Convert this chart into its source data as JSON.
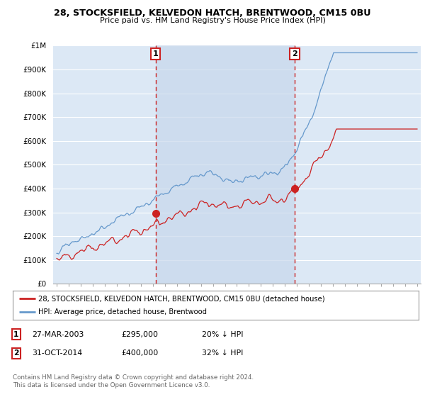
{
  "title1": "28, STOCKSFIELD, KELVEDON HATCH, BRENTWOOD, CM15 0BU",
  "title2": "Price paid vs. HM Land Registry's House Price Index (HPI)",
  "background_color": "#ffffff",
  "plot_bg_color": "#dce8f5",
  "grid_color": "#ffffff",
  "red_color": "#cc2222",
  "blue_color": "#6699cc",
  "shade_color": "#ccdcee",
  "marker1_date_x": 2003.22,
  "marker1_price": 295000,
  "marker2_date_x": 2014.83,
  "marker2_price": 400000,
  "legend_entry1": "28, STOCKSFIELD, KELVEDON HATCH, BRENTWOOD, CM15 0BU (detached house)",
  "legend_entry2": "HPI: Average price, detached house, Brentwood",
  "table_row1": [
    "1",
    "27-MAR-2003",
    "£295,000",
    "20% ↓ HPI"
  ],
  "table_row2": [
    "2",
    "31-OCT-2014",
    "£400,000",
    "32% ↓ HPI"
  ],
  "footnote": "Contains HM Land Registry data © Crown copyright and database right 2024.\nThis data is licensed under the Open Government Licence v3.0.",
  "ylim": [
    0,
    1000000
  ],
  "xlim_start": 1994.7,
  "xlim_end": 2025.3,
  "yticks": [
    0,
    100000,
    200000,
    300000,
    400000,
    500000,
    600000,
    700000,
    800000,
    900000,
    1000000
  ],
  "ylabels": [
    "£0",
    "£100K",
    "£200K",
    "£300K",
    "£400K",
    "£500K",
    "£600K",
    "£700K",
    "£800K",
    "£900K",
    "£1M"
  ]
}
